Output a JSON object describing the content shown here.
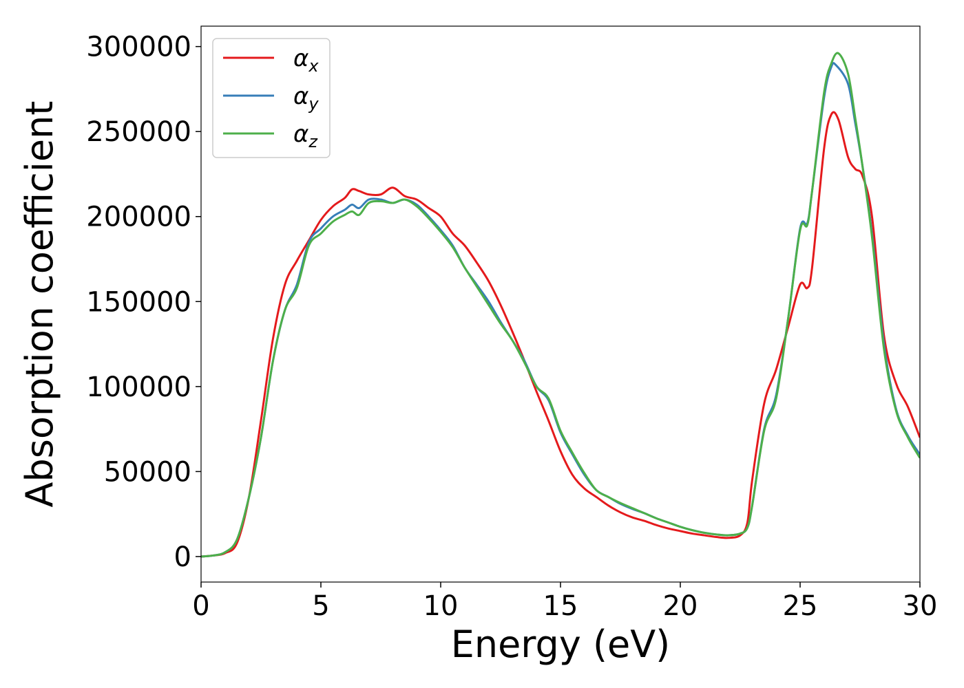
{
  "chart_data": {
    "type": "line",
    "title": "",
    "xlabel": "Energy (eV)",
    "ylabel": "Absorption coefficient",
    "xlim": [
      0,
      30
    ],
    "ylim": [
      -15000,
      312000
    ],
    "xticks": [
      0,
      5,
      10,
      15,
      20,
      25,
      30
    ],
    "xtick_labels": [
      "0",
      "5",
      "10",
      "15",
      "20",
      "25",
      "30"
    ],
    "yticks": [
      0,
      50000,
      100000,
      150000,
      200000,
      250000,
      300000
    ],
    "ytick_labels": [
      "0",
      "50000",
      "100000",
      "150000",
      "200000",
      "250000",
      "300000"
    ],
    "grid": false,
    "legend_position": "top-left",
    "series": [
      {
        "name": "αx",
        "name_base": "α",
        "name_sub": "x",
        "color": "#e41a1c",
        "x": [
          0,
          0.5,
          1.0,
          1.5,
          2.0,
          2.5,
          3.0,
          3.5,
          4.0,
          4.5,
          5.0,
          5.5,
          6.0,
          6.3,
          6.6,
          7.0,
          7.5,
          8.0,
          8.5,
          9.0,
          9.5,
          10.0,
          10.5,
          11.0,
          11.5,
          12.0,
          12.5,
          13.0,
          13.5,
          14.0,
          14.5,
          15.0,
          15.5,
          16.0,
          16.5,
          17.0,
          17.5,
          18.0,
          18.5,
          19.0,
          19.5,
          20.0,
          20.5,
          21.0,
          21.5,
          22.0,
          22.5,
          22.8,
          23.0,
          23.5,
          24.0,
          24.5,
          25.0,
          25.3,
          25.5,
          26.0,
          26.3,
          26.6,
          27.0,
          27.3,
          27.6,
          28.0,
          28.5,
          29.0,
          29.5,
          30.0
        ],
        "values": [
          0,
          600,
          2000,
          8000,
          35000,
          80000,
          128000,
          160000,
          174000,
          186000,
          198000,
          206000,
          211000,
          216000,
          215000,
          213000,
          213000,
          217000,
          212000,
          210000,
          205000,
          200000,
          190000,
          183000,
          173000,
          162000,
          148000,
          132000,
          115000,
          97000,
          80000,
          62000,
          48000,
          40000,
          35000,
          30000,
          26000,
          23000,
          21000,
          18500,
          16500,
          15000,
          13500,
          12500,
          11500,
          11000,
          12500,
          20000,
          45000,
          90000,
          110000,
          135000,
          160000,
          158000,
          170000,
          240000,
          260000,
          257000,
          235000,
          228000,
          224000,
          200000,
          130000,
          102000,
          88000,
          70000
        ]
      },
      {
        "name": "αy",
        "name_base": "α",
        "name_sub": "y",
        "color": "#377eb8",
        "x": [
          0,
          0.5,
          1.0,
          1.5,
          2.0,
          2.5,
          3.0,
          3.5,
          4.0,
          4.5,
          5.0,
          5.5,
          6.0,
          6.3,
          6.6,
          7.0,
          7.5,
          8.0,
          8.5,
          9.0,
          9.5,
          10.0,
          10.5,
          11.0,
          11.5,
          12.0,
          12.5,
          13.0,
          13.5,
          14.0,
          14.5,
          15.0,
          15.5,
          16.0,
          16.5,
          17.0,
          17.5,
          18.0,
          18.5,
          19.0,
          19.5,
          20.0,
          20.5,
          21.0,
          21.5,
          22.0,
          22.5,
          22.8,
          23.0,
          23.5,
          24.0,
          24.5,
          25.0,
          25.3,
          25.5,
          26.0,
          26.3,
          26.5,
          27.0,
          27.3,
          27.6,
          28.0,
          28.5,
          29.0,
          29.5,
          30.0
        ],
        "values": [
          0,
          600,
          2500,
          10000,
          35000,
          70000,
          115000,
          145000,
          160000,
          185000,
          193000,
          200000,
          204000,
          207000,
          205000,
          210000,
          210000,
          208000,
          210000,
          207000,
          200000,
          192000,
          183000,
          170000,
          160000,
          150000,
          138000,
          127000,
          115000,
          100000,
          92000,
          73000,
          60000,
          48000,
          39000,
          35000,
          31000,
          28000,
          25500,
          22500,
          20000,
          17500,
          15500,
          14000,
          13000,
          12500,
          13500,
          17000,
          30000,
          75000,
          95000,
          140000,
          193000,
          196000,
          215000,
          270000,
          288000,
          289000,
          278000,
          255000,
          230000,
          190000,
          125000,
          87000,
          71000,
          60000
        ]
      },
      {
        "name": "αz",
        "name_base": "α",
        "name_sub": "z",
        "color": "#4daf4a",
        "x": [
          0,
          0.5,
          1.0,
          1.5,
          2.0,
          2.5,
          3.0,
          3.5,
          4.0,
          4.5,
          5.0,
          5.5,
          6.0,
          6.3,
          6.6,
          7.0,
          7.5,
          8.0,
          8.5,
          9.0,
          9.5,
          10.0,
          10.5,
          11.0,
          11.5,
          12.0,
          12.5,
          13.0,
          13.5,
          14.0,
          14.5,
          15.0,
          15.5,
          16.0,
          16.5,
          17.0,
          17.5,
          18.0,
          18.5,
          19.0,
          19.5,
          20.0,
          20.5,
          21.0,
          21.5,
          22.0,
          22.5,
          22.8,
          23.0,
          23.5,
          24.0,
          24.5,
          25.0,
          25.3,
          25.5,
          26.0,
          26.3,
          26.6,
          27.0,
          27.3,
          27.6,
          28.0,
          28.5,
          29.0,
          29.5,
          30.0
        ],
        "values": [
          0,
          600,
          2500,
          10000,
          35000,
          70000,
          115000,
          145000,
          158000,
          183000,
          190000,
          197000,
          201000,
          203000,
          201000,
          208000,
          209000,
          208000,
          210000,
          206000,
          199000,
          191000,
          182000,
          170000,
          159000,
          148000,
          137000,
          127000,
          114000,
          100000,
          93000,
          74000,
          61000,
          49000,
          39000,
          35000,
          31500,
          28500,
          25500,
          22500,
          20000,
          17500,
          15500,
          14000,
          13000,
          12500,
          13500,
          17000,
          30000,
          74000,
          93000,
          140000,
          192000,
          195000,
          215000,
          273000,
          290000,
          296000,
          284000,
          258000,
          230000,
          188000,
          122000,
          86000,
          70000,
          58000
        ]
      }
    ]
  }
}
